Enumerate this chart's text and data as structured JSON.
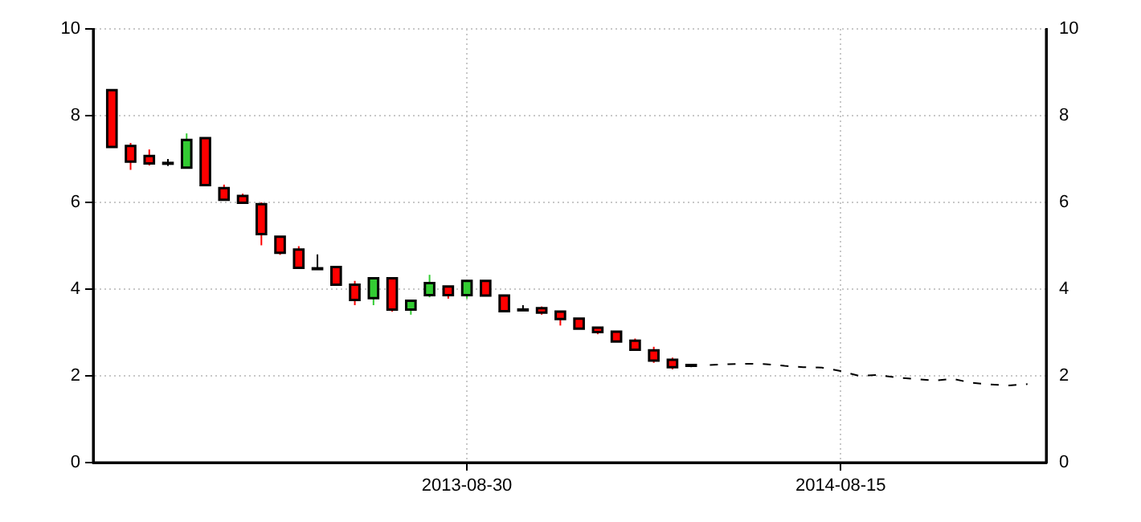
{
  "chart_data": {
    "type": "candlestick",
    "categories": [
      null,
      null,
      null,
      null,
      null,
      null,
      null,
      null,
      null,
      null,
      null,
      null,
      null,
      null,
      null,
      null,
      null,
      null,
      null,
      null,
      "2013-08-30",
      null,
      null,
      null,
      null,
      null,
      null,
      null,
      null,
      null,
      null,
      null,
      null,
      null,
      null,
      null,
      null,
      null,
      null,
      null,
      "2014-08-15",
      null,
      null,
      null,
      null,
      null,
      null,
      null,
      null,
      null,
      null,
      null
    ],
    "ohlc": [
      null,
      [
        8.59,
        8.59,
        7.28,
        7.28
      ],
      [
        7.3,
        7.37,
        6.75,
        6.94
      ],
      [
        7.07,
        7.22,
        6.85,
        6.9
      ],
      [
        6.91,
        7.0,
        6.84,
        6.91
      ],
      [
        6.8,
        7.59,
        6.8,
        7.44
      ],
      [
        7.48,
        7.48,
        6.4,
        6.4
      ],
      [
        6.33,
        6.41,
        6.06,
        6.06
      ],
      [
        6.15,
        6.2,
        5.99,
        5.99
      ],
      [
        5.96,
        6.0,
        5.01,
        5.27
      ],
      [
        5.21,
        5.21,
        4.79,
        4.84
      ],
      [
        4.91,
        4.99,
        4.49,
        4.49
      ],
      [
        4.48,
        4.8,
        4.48,
        4.48
      ],
      [
        4.51,
        4.51,
        4.1,
        4.1
      ],
      [
        4.1,
        4.19,
        3.63,
        3.75
      ],
      [
        3.79,
        4.25,
        3.63,
        4.25
      ],
      [
        4.25,
        4.25,
        3.48,
        3.53
      ],
      [
        3.53,
        3.73,
        3.41,
        3.73
      ],
      [
        3.86,
        4.33,
        3.81,
        4.14
      ],
      [
        4.06,
        4.06,
        3.78,
        3.86
      ],
      [
        3.86,
        4.19,
        3.78,
        4.19
      ],
      [
        4.19,
        4.19,
        3.85,
        3.85
      ],
      [
        3.85,
        3.85,
        3.49,
        3.49
      ],
      [
        3.53,
        3.63,
        3.53,
        3.53
      ],
      [
        3.56,
        3.6,
        3.41,
        3.46
      ],
      [
        3.48,
        3.48,
        3.16,
        3.31
      ],
      [
        3.32,
        3.32,
        3.09,
        3.09
      ],
      [
        3.11,
        3.11,
        2.96,
        3.01
      ],
      [
        3.02,
        3.02,
        2.79,
        2.79
      ],
      [
        2.81,
        2.86,
        2.6,
        2.6
      ],
      [
        2.59,
        2.67,
        2.3,
        2.35
      ],
      [
        2.37,
        2.42,
        2.15,
        2.2
      ],
      [
        2.25,
        2.25,
        2.2,
        2.25
      ],
      null,
      null,
      null,
      null,
      null,
      null,
      null,
      null,
      null,
      null,
      null,
      null,
      null,
      null,
      null,
      null,
      null,
      null,
      null
    ],
    "colors": [
      null,
      "#ff0000",
      "#ff0000",
      "#ff0000",
      "#000000",
      "#33cc33",
      "#ff0000",
      "#ff0000",
      "#ff0000",
      "#ff0000",
      "#ff0000",
      "#ff0000",
      "#000000",
      "#ff0000",
      "#ff0000",
      "#33cc33",
      "#ff0000",
      "#33cc33",
      "#33cc33",
      "#ff0000",
      "#33cc33",
      "#ff0000",
      "#ff0000",
      "#000000",
      "#ff0000",
      "#ff0000",
      "#ff0000",
      "#ff0000",
      "#ff0000",
      "#ff0000",
      "#ff0000",
      "#ff0000",
      "#000000",
      null,
      null,
      null,
      null,
      null,
      null,
      null,
      null,
      null,
      null,
      null,
      null,
      null,
      null,
      null,
      null,
      null,
      null,
      null
    ],
    "series": [
      {
        "type": "line",
        "color": "#000000",
        "line_style": "dashed",
        "values": [
          null,
          null,
          null,
          null,
          null,
          null,
          null,
          null,
          null,
          null,
          null,
          null,
          null,
          null,
          null,
          null,
          null,
          null,
          null,
          null,
          null,
          null,
          null,
          null,
          null,
          null,
          null,
          null,
          null,
          null,
          null,
          null,
          null,
          2.25,
          2.27,
          2.28,
          2.27,
          2.23,
          2.2,
          2.19,
          2.11,
          2.0,
          2.02,
          1.96,
          1.93,
          1.89,
          1.93,
          1.84,
          1.8,
          1.78,
          1.81,
          null
        ]
      }
    ],
    "ylim": [
      0,
      10
    ],
    "yticks": [
      0,
      2,
      4,
      6,
      8,
      10
    ],
    "y2lim": [
      0,
      10
    ],
    "y2ticks": [
      0,
      2,
      4,
      6,
      8,
      10
    ],
    "grid": true,
    "legend": false,
    "marker": "none"
  }
}
